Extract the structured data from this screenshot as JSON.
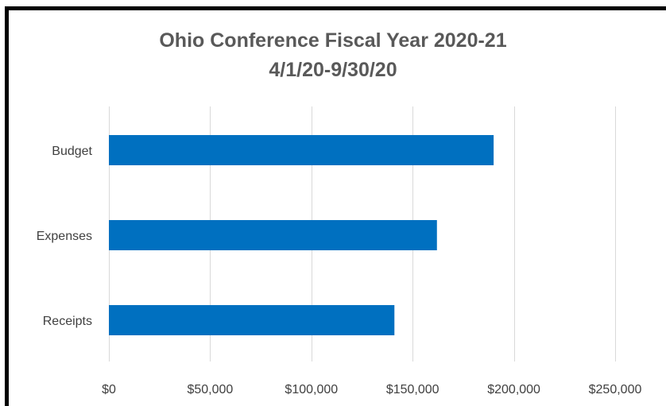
{
  "chart_data": {
    "type": "bar",
    "orientation": "horizontal",
    "title": "Ohio Conference Fiscal Year 2020-21",
    "subtitle": "4/1/20-9/30/20",
    "categories": [
      "Budget",
      "Expenses",
      "Receipts"
    ],
    "values": [
      190000,
      162000,
      141000
    ],
    "xlim": [
      0,
      250000
    ],
    "xticks": [
      0,
      50000,
      100000,
      150000,
      200000,
      250000
    ],
    "xtick_labels": [
      "$0",
      "$50,000",
      "$100,000",
      "$150,000",
      "$200,000",
      "$250,000"
    ],
    "xlabel": "",
    "ylabel": "",
    "grid": true,
    "legend": "none",
    "bar_color": "#0070C0",
    "grid_color": "#D9D9D9"
  }
}
